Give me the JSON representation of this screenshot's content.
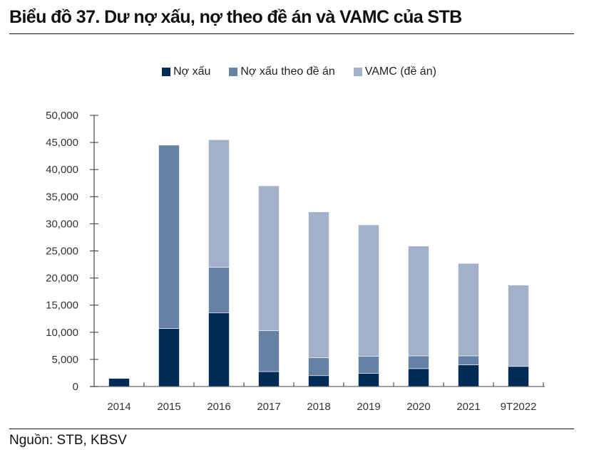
{
  "title": "Biểu đồ 37. Dư nợ xấu, nợ theo đề án và VAMC của STB",
  "source": "Nguồn: STB, KBSV",
  "chart_data": {
    "type": "bar",
    "stacked": true,
    "title": "Biểu đồ 37. Dư nợ xấu, nợ theo đề án và VAMC của STB",
    "xlabel": "",
    "ylabel": "",
    "categories": [
      "2014",
      "2015",
      "2016",
      "2017",
      "2018",
      "2019",
      "2020",
      "2021",
      "9T2022"
    ],
    "series": [
      {
        "name": "Nợ xấu",
        "color": "#002b55",
        "values": [
          1500,
          10700,
          13600,
          2750,
          2000,
          2400,
          3300,
          4000,
          3700
        ]
      },
      {
        "name": "Nợ xấu theo đề án",
        "color": "#6581a4",
        "values": [
          0,
          33800,
          8400,
          7550,
          3300,
          3150,
          2350,
          1650,
          0
        ]
      },
      {
        "name": "VAMC (đề án)",
        "color": "#a2b1c9",
        "values": [
          0,
          0,
          23500,
          26700,
          26900,
          24250,
          20250,
          17050,
          15000
        ]
      }
    ],
    "ylim": [
      0,
      50000
    ],
    "yticks": [
      0,
      5000,
      10000,
      15000,
      20000,
      25000,
      30000,
      35000,
      40000,
      45000,
      50000
    ],
    "ytick_labels": [
      "0",
      "5,000",
      "10,000",
      "15,000",
      "20,000",
      "25,000",
      "30,000",
      "35,000",
      "40,000",
      "45,000",
      "50,000"
    ],
    "grid": false,
    "legend_position": "top-center"
  }
}
